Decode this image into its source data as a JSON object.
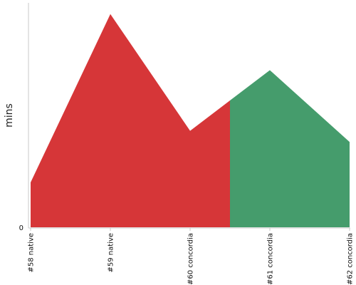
{
  "chart_data": {
    "type": "area",
    "ylabel": "mins",
    "y_tick_labels": [
      "0"
    ],
    "ylim": [
      0,
      100
    ],
    "categories": [
      "#58 native",
      "#59 native",
      "#60 concordia",
      "#61 concordia",
      "#62 concordia"
    ],
    "values": [
      20,
      95,
      43,
      70,
      38
    ],
    "segments": [
      {
        "from": 0,
        "to": 2.5,
        "color": "#d63638"
      },
      {
        "from": 2.5,
        "to": 4,
        "color": "#459c6c"
      }
    ],
    "grid": false,
    "legend": "none"
  }
}
